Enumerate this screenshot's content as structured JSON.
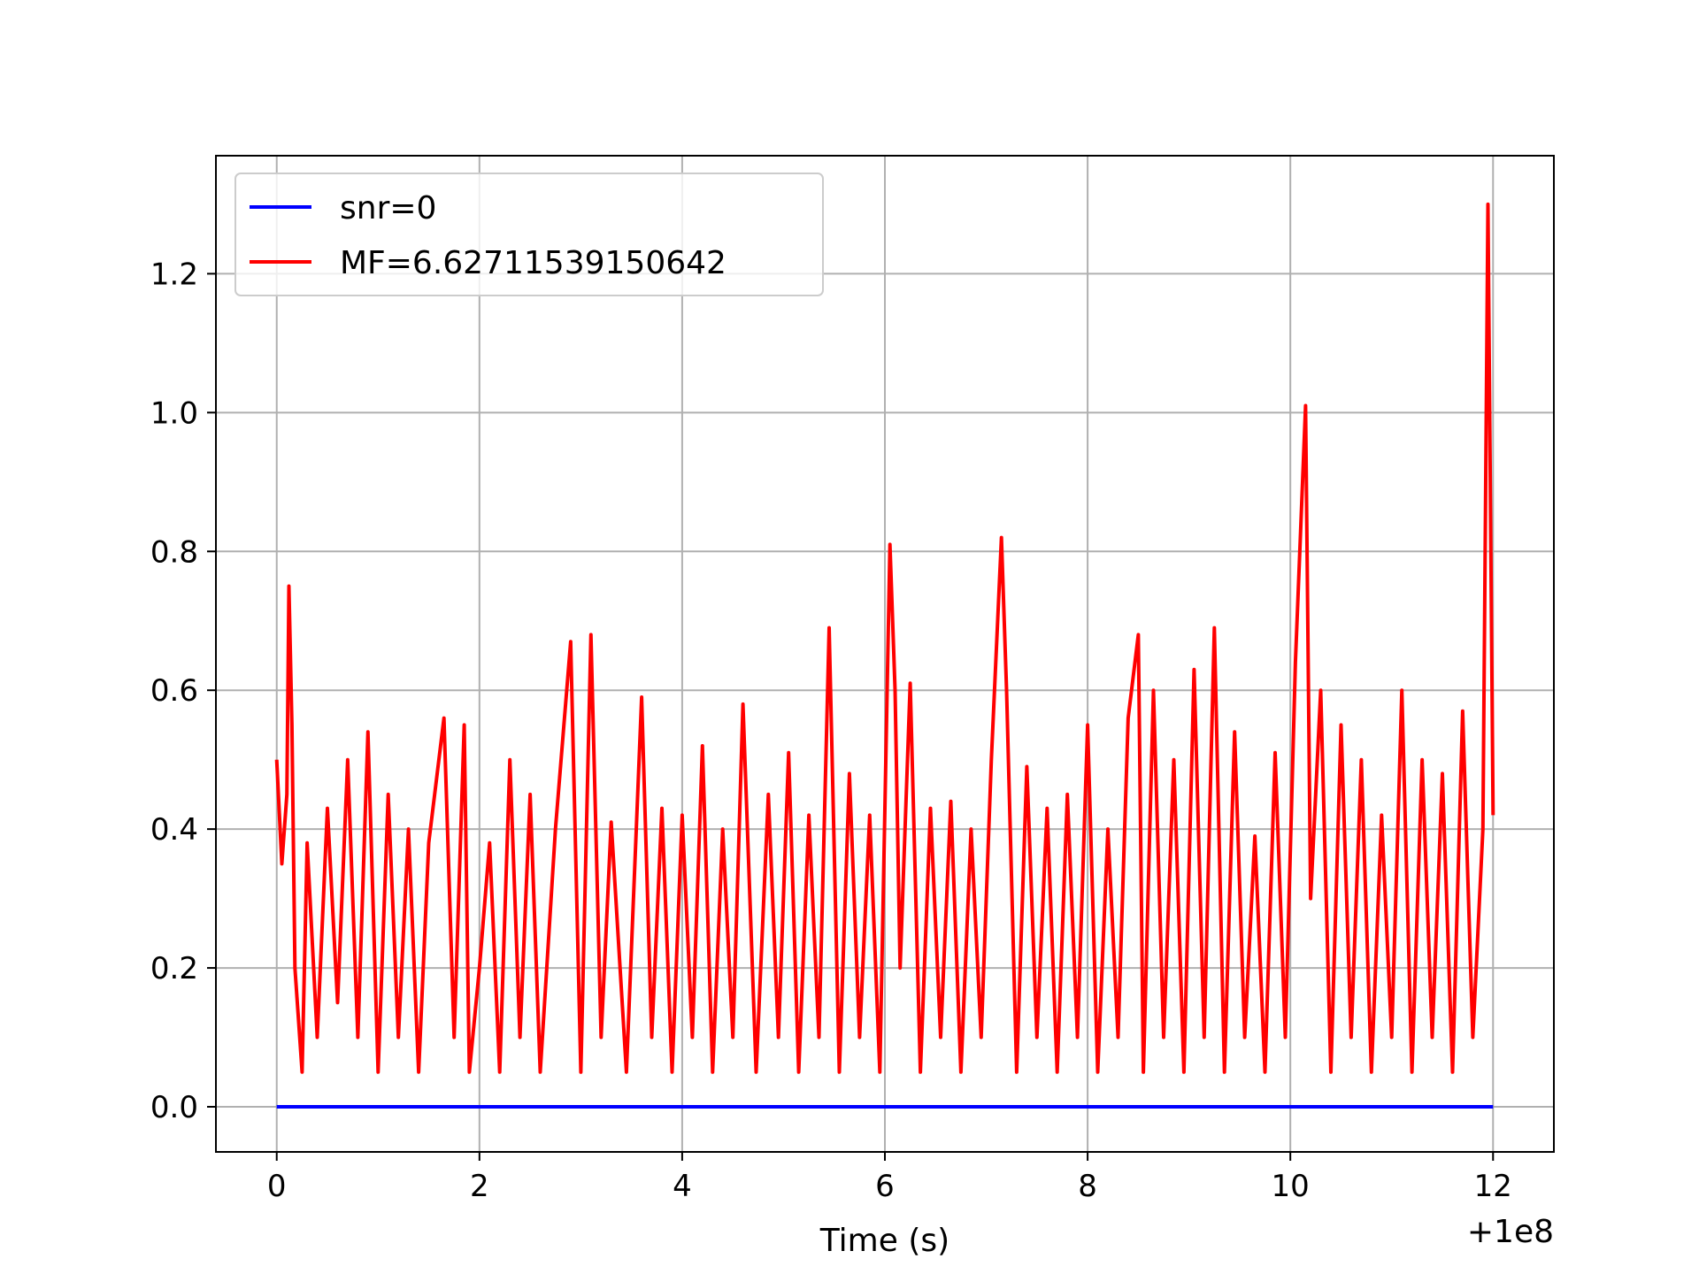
{
  "chart_data": {
    "type": "line",
    "title": "",
    "xlabel": "Time (s)",
    "ylabel": "",
    "x_offset_text": "+1e8",
    "xlim": [
      -0.6,
      12.6
    ],
    "ylim": [
      -0.065,
      1.37
    ],
    "x_ticks": [
      0,
      2,
      4,
      6,
      8,
      10,
      12
    ],
    "x_tick_labels": [
      "0",
      "2",
      "4",
      "6",
      "8",
      "10",
      "12"
    ],
    "y_ticks": [
      0.0,
      0.2,
      0.4,
      0.6,
      0.8,
      1.0,
      1.2
    ],
    "y_tick_labels": [
      "0.0",
      "0.2",
      "0.4",
      "0.6",
      "0.8",
      "1.0",
      "1.2"
    ],
    "grid": true,
    "legend_position": "top-left",
    "series": [
      {
        "name": "snr=0",
        "color": "#0000ff",
        "x": [
          0,
          12
        ],
        "y": [
          0,
          0
        ]
      },
      {
        "name": "MF=6.62711539150642",
        "color": "#ff0000",
        "x": [
          0.0,
          0.05,
          0.1,
          0.12,
          0.15,
          0.18,
          0.25,
          0.3,
          0.4,
          0.5,
          0.6,
          0.7,
          0.8,
          0.9,
          1.0,
          1.1,
          1.2,
          1.3,
          1.4,
          1.5,
          1.65,
          1.75,
          1.85,
          1.9,
          2.0,
          2.1,
          2.2,
          2.3,
          2.4,
          2.5,
          2.6,
          2.75,
          2.9,
          3.0,
          3.1,
          3.2,
          3.3,
          3.45,
          3.6,
          3.7,
          3.8,
          3.9,
          4.0,
          4.1,
          4.2,
          4.3,
          4.4,
          4.5,
          4.6,
          4.73,
          4.85,
          4.95,
          5.05,
          5.15,
          5.25,
          5.35,
          5.45,
          5.55,
          5.65,
          5.75,
          5.85,
          5.95,
          6.05,
          6.1,
          6.15,
          6.25,
          6.35,
          6.45,
          6.55,
          6.65,
          6.75,
          6.85,
          6.95,
          7.05,
          7.15,
          7.2,
          7.3,
          7.4,
          7.5,
          7.6,
          7.7,
          7.8,
          7.9,
          8.0,
          8.1,
          8.2,
          8.3,
          8.4,
          8.5,
          8.55,
          8.65,
          8.75,
          8.85,
          8.95,
          9.05,
          9.15,
          9.25,
          9.35,
          9.45,
          9.55,
          9.65,
          9.75,
          9.85,
          9.95,
          10.05,
          10.15,
          10.2,
          10.3,
          10.4,
          10.5,
          10.6,
          10.7,
          10.8,
          10.9,
          11.0,
          11.1,
          11.2,
          11.3,
          11.4,
          11.5,
          11.6,
          11.7,
          11.8,
          11.9,
          11.95,
          12.0
        ],
        "y": [
          0.5,
          0.35,
          0.45,
          0.75,
          0.55,
          0.2,
          0.05,
          0.38,
          0.1,
          0.43,
          0.15,
          0.5,
          0.1,
          0.54,
          0.05,
          0.45,
          0.1,
          0.4,
          0.05,
          0.38,
          0.56,
          0.1,
          0.55,
          0.05,
          0.2,
          0.38,
          0.05,
          0.5,
          0.1,
          0.45,
          0.05,
          0.4,
          0.67,
          0.05,
          0.68,
          0.1,
          0.41,
          0.05,
          0.59,
          0.1,
          0.43,
          0.05,
          0.42,
          0.1,
          0.52,
          0.05,
          0.4,
          0.1,
          0.58,
          0.05,
          0.45,
          0.1,
          0.51,
          0.05,
          0.42,
          0.1,
          0.69,
          0.05,
          0.48,
          0.1,
          0.42,
          0.05,
          0.81,
          0.6,
          0.2,
          0.61,
          0.05,
          0.43,
          0.1,
          0.44,
          0.05,
          0.4,
          0.1,
          0.5,
          0.82,
          0.6,
          0.05,
          0.49,
          0.1,
          0.43,
          0.05,
          0.45,
          0.1,
          0.55,
          0.05,
          0.4,
          0.1,
          0.56,
          0.68,
          0.05,
          0.6,
          0.1,
          0.5,
          0.05,
          0.63,
          0.1,
          0.69,
          0.05,
          0.54,
          0.1,
          0.39,
          0.05,
          0.51,
          0.1,
          0.64,
          1.01,
          0.3,
          0.6,
          0.05,
          0.55,
          0.1,
          0.5,
          0.05,
          0.42,
          0.1,
          0.6,
          0.05,
          0.5,
          0.1,
          0.48,
          0.05,
          0.57,
          0.1,
          0.4,
          1.3,
          0.42
        ]
      }
    ]
  }
}
